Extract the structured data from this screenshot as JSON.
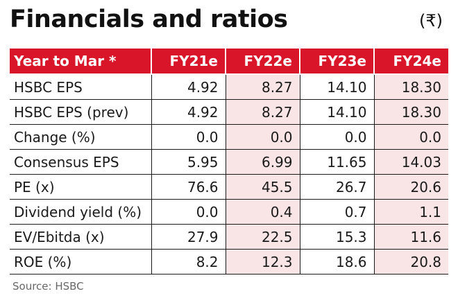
{
  "title": "Financials and ratios",
  "currency": "(₹)",
  "table": {
    "header": [
      "Year to Mar *",
      "FY21e",
      "FY22e",
      "FY23e",
      "FY24e"
    ],
    "rows": [
      {
        "label": "HSBC EPS",
        "values": [
          "4.92",
          "8.27",
          "14.10",
          "18.30"
        ]
      },
      {
        "label": "HSBC EPS (prev)",
        "values": [
          "4.92",
          "8.27",
          "14.10",
          "18.30"
        ]
      },
      {
        "label": "Change (%)",
        "values": [
          "0.0",
          "0.0",
          "0.0",
          "0.0"
        ]
      },
      {
        "label": "Consensus EPS",
        "values": [
          "5.95",
          "6.99",
          "11.65",
          "14.03"
        ]
      },
      {
        "label": "PE (x)",
        "values": [
          "76.6",
          "45.5",
          "26.7",
          "20.6"
        ]
      },
      {
        "label": "Dividend yield (%)",
        "values": [
          "0.0",
          "0.4",
          "0.7",
          "1.1"
        ]
      },
      {
        "label": "EV/Ebitda (x)",
        "values": [
          "27.9",
          "22.5",
          "15.3",
          "11.6"
        ]
      },
      {
        "label": "ROE (%)",
        "values": [
          "8.2",
          "12.3",
          "18.6",
          "20.8"
        ]
      }
    ]
  },
  "source": "Source: HSBC",
  "colors": {
    "header_bg": "#d9152a",
    "shaded_column_bg": "#f9e4e6"
  }
}
